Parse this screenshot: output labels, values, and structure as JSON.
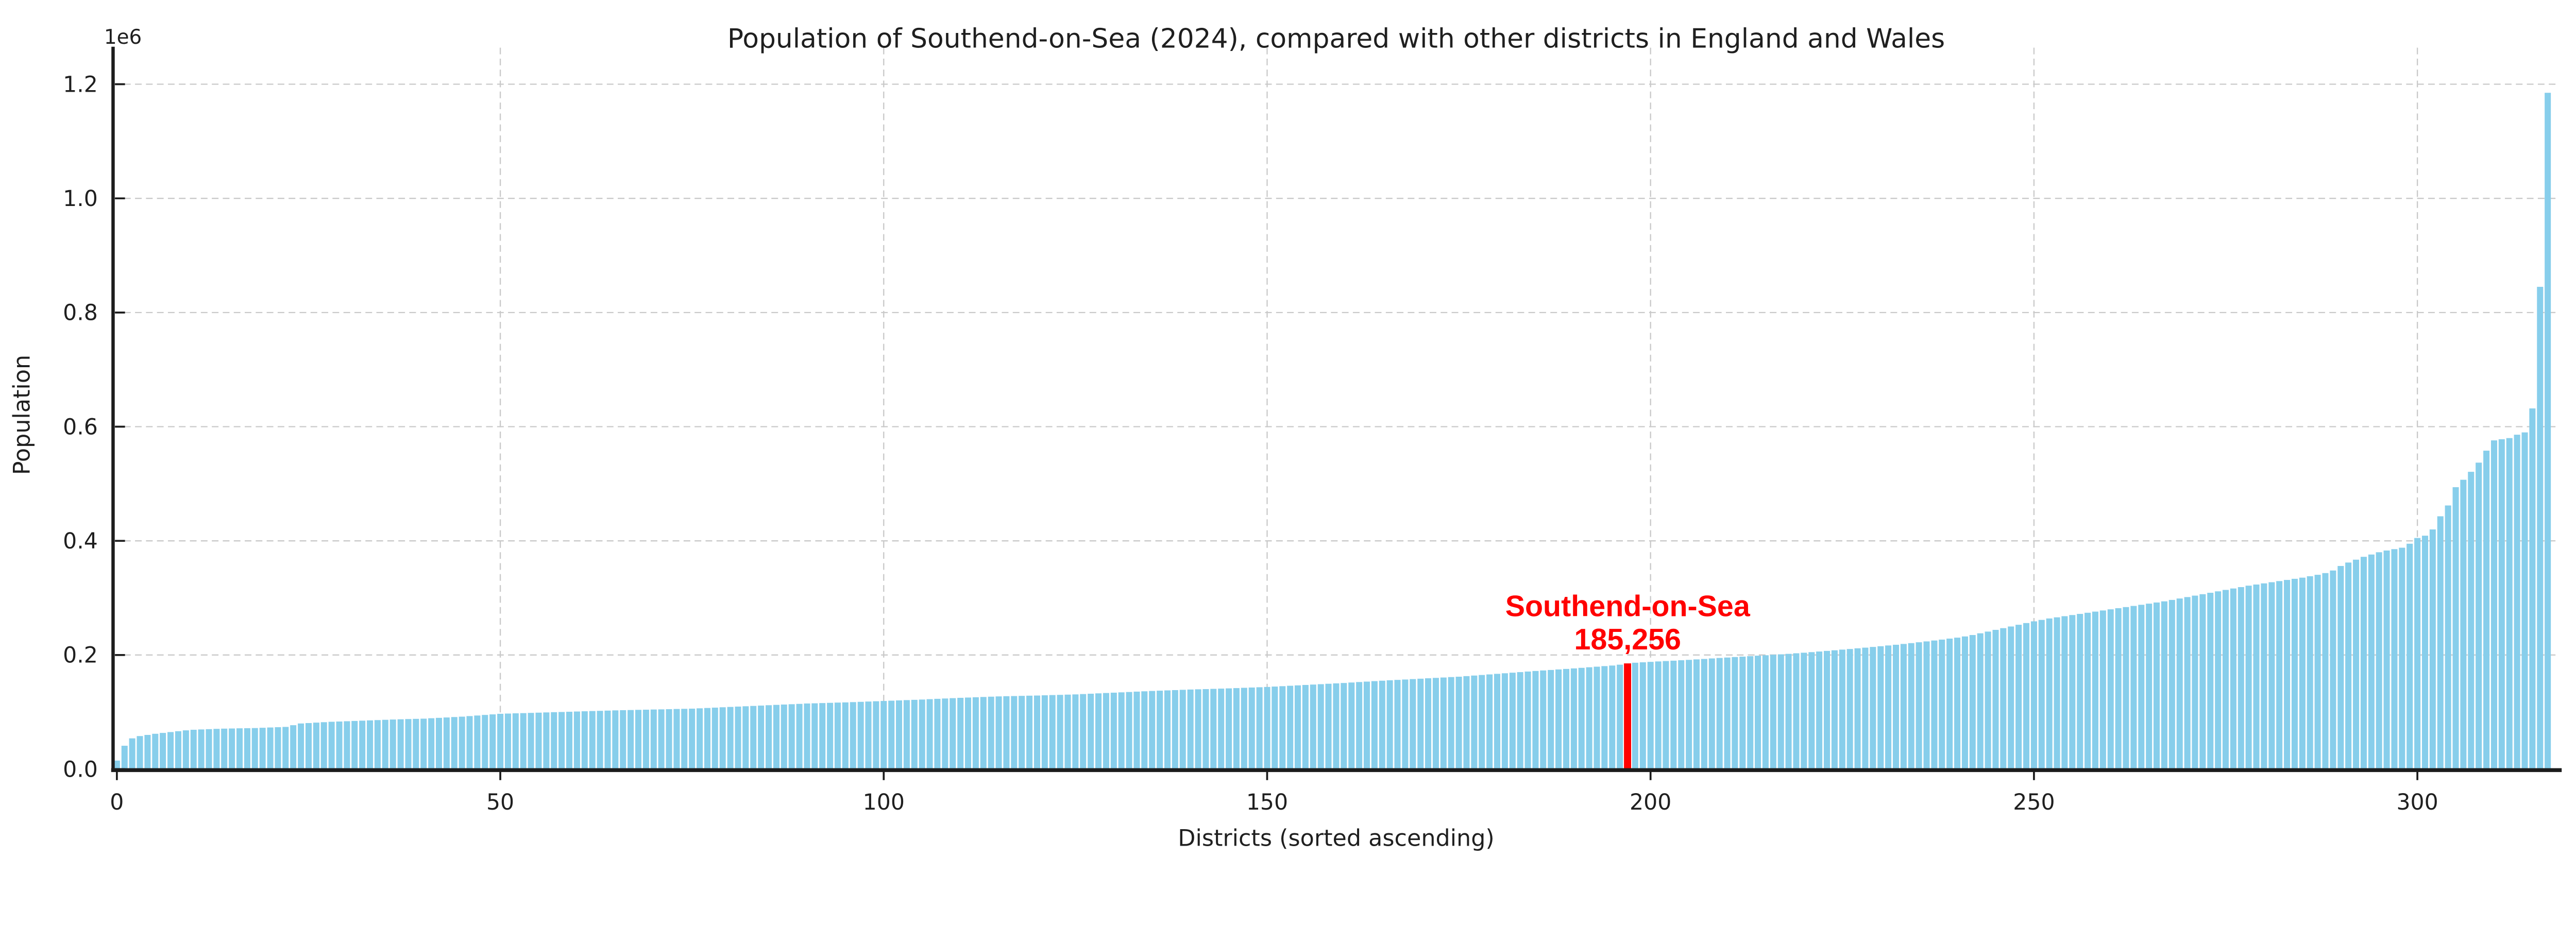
{
  "page": {
    "background": "#ffffff"
  },
  "chart_data": {
    "type": "bar",
    "title": "Population of Southend-on-Sea (2024), compared with other districts in England and Wales",
    "xlabel": "Districts (sorted ascending)",
    "ylabel": "Population",
    "y_offset_label": "1e6",
    "x_ticks": [
      0,
      50,
      100,
      150,
      200,
      250,
      300
    ],
    "y_tick_labels": [
      "0.0",
      "0.2",
      "0.4",
      "0.6",
      "0.8",
      "1.0",
      "1.2"
    ],
    "y_tick_values": [
      0,
      200000,
      400000,
      600000,
      800000,
      1000000,
      1200000
    ],
    "ylim": [
      0,
      1262500
    ],
    "xlim": [
      -0.5,
      318.5
    ],
    "grid": "dashed gridlines at all x and y ticks, drawn under bars",
    "legend": "none",
    "n_bars": 318,
    "bar_color": "#87CEEB",
    "highlight_color": "#FF0000",
    "axis_color": "#1c1c1c",
    "grid_color": "#c9c9c9",
    "highlight_index": 197,
    "highlight": {
      "label": "Southend-on-Sea",
      "value_label": "185,256",
      "value": 185256
    },
    "values": [
      15000,
      41000,
      54000,
      58000,
      60000,
      62000,
      63500,
      65000,
      66500,
      68000,
      69000,
      69600,
      70100,
      70600,
      71000,
      71300,
      71600,
      71800,
      72000,
      72500,
      73000,
      73500,
      74000,
      77000,
      80000,
      80800,
      81500,
      82300,
      83000,
      83500,
      84000,
      84500,
      85000,
      85500,
      86000,
      86500,
      87000,
      87400,
      87800,
      88100,
      88500,
      89200,
      89900,
      90600,
      91300,
      92000,
      93000,
      94000,
      95000,
      96000,
      97000,
      97400,
      97800,
      98200,
      98600,
      99000,
      99400,
      99800,
      100200,
      100600,
      101000,
      101400,
      101800,
      102200,
      102600,
      103000,
      103300,
      103600,
      103900,
      104200,
      104500,
      104800,
      105100,
      105400,
      105700,
      106000,
      106600,
      107200,
      107800,
      108400,
      109000,
      109600,
      110200,
      110800,
      111400,
      112000,
      112600,
      113200,
      113800,
      114400,
      115000,
      115400,
      115800,
      116200,
      116600,
      117000,
      117500,
      118000,
      118500,
      119000,
      119500,
      120000,
      120500,
      121000,
      121500,
      122000,
      122600,
      123200,
      123800,
      124400,
      125000,
      125500,
      126000,
      126500,
      127000,
      127500,
      127800,
      128100,
      128400,
      128700,
      129000,
      129400,
      129800,
      130200,
      130600,
      131000,
      131600,
      132200,
      132800,
      133400,
      134000,
      134600,
      135200,
      135800,
      136400,
      137000,
      137500,
      138000,
      138500,
      139000,
      139500,
      139900,
      140300,
      140700,
      141100,
      141500,
      142000,
      142500,
      143000,
      143500,
      144000,
      144700,
      145400,
      146100,
      146800,
      147500,
      148200,
      148900,
      149600,
      150300,
      151000,
      151800,
      152600,
      153400,
      154200,
      155000,
      155700,
      156400,
      157100,
      157800,
      158500,
      159200,
      159900,
      160600,
      161300,
      162000,
      163000,
      164000,
      165000,
      166000,
      167000,
      168000,
      169000,
      170000,
      171000,
      172000,
      172900,
      173800,
      174700,
      175600,
      176500,
      177500,
      178500,
      179500,
      180500,
      181500,
      183000,
      185256,
      186500,
      187200,
      188000,
      188700,
      189400,
      190100,
      190800,
      191500,
      192300,
      193100,
      194000,
      194800,
      195600,
      196400,
      197200,
      198000,
      198800,
      199600,
      200400,
      201200,
      202000,
      203000,
      204000,
      205000,
      206100,
      207200,
      208300,
      209400,
      210500,
      211700,
      212900,
      214100,
      215400,
      216700,
      218000,
      219400,
      220800,
      222300,
      223800,
      225400,
      227000,
      228700,
      230400,
      232500,
      235000,
      238000,
      241000,
      244000,
      247000,
      250000,
      253000,
      256000,
      259000,
      261500,
      264000,
      266000,
      268000,
      270000,
      272000,
      274000,
      276000,
      278000,
      280000,
      282000,
      284000,
      286000,
      288000,
      290000,
      292000,
      294000,
      296500,
      299000,
      301500,
      304000,
      306500,
      309000,
      311500,
      314000,
      316500,
      319000,
      321500,
      323500,
      325500,
      327500,
      329500,
      331500,
      333500,
      335500,
      338000,
      340500,
      343500,
      348000,
      356000,
      362000,
      367000,
      372000,
      376000,
      380000,
      383000,
      385500,
      388000,
      395000,
      405000,
      409000,
      420000,
      443000,
      462000,
      494000,
      507000,
      521000,
      537000,
      558000,
      576000,
      578000,
      580000,
      586000,
      590000,
      632000,
      845000,
      1185000
    ]
  }
}
